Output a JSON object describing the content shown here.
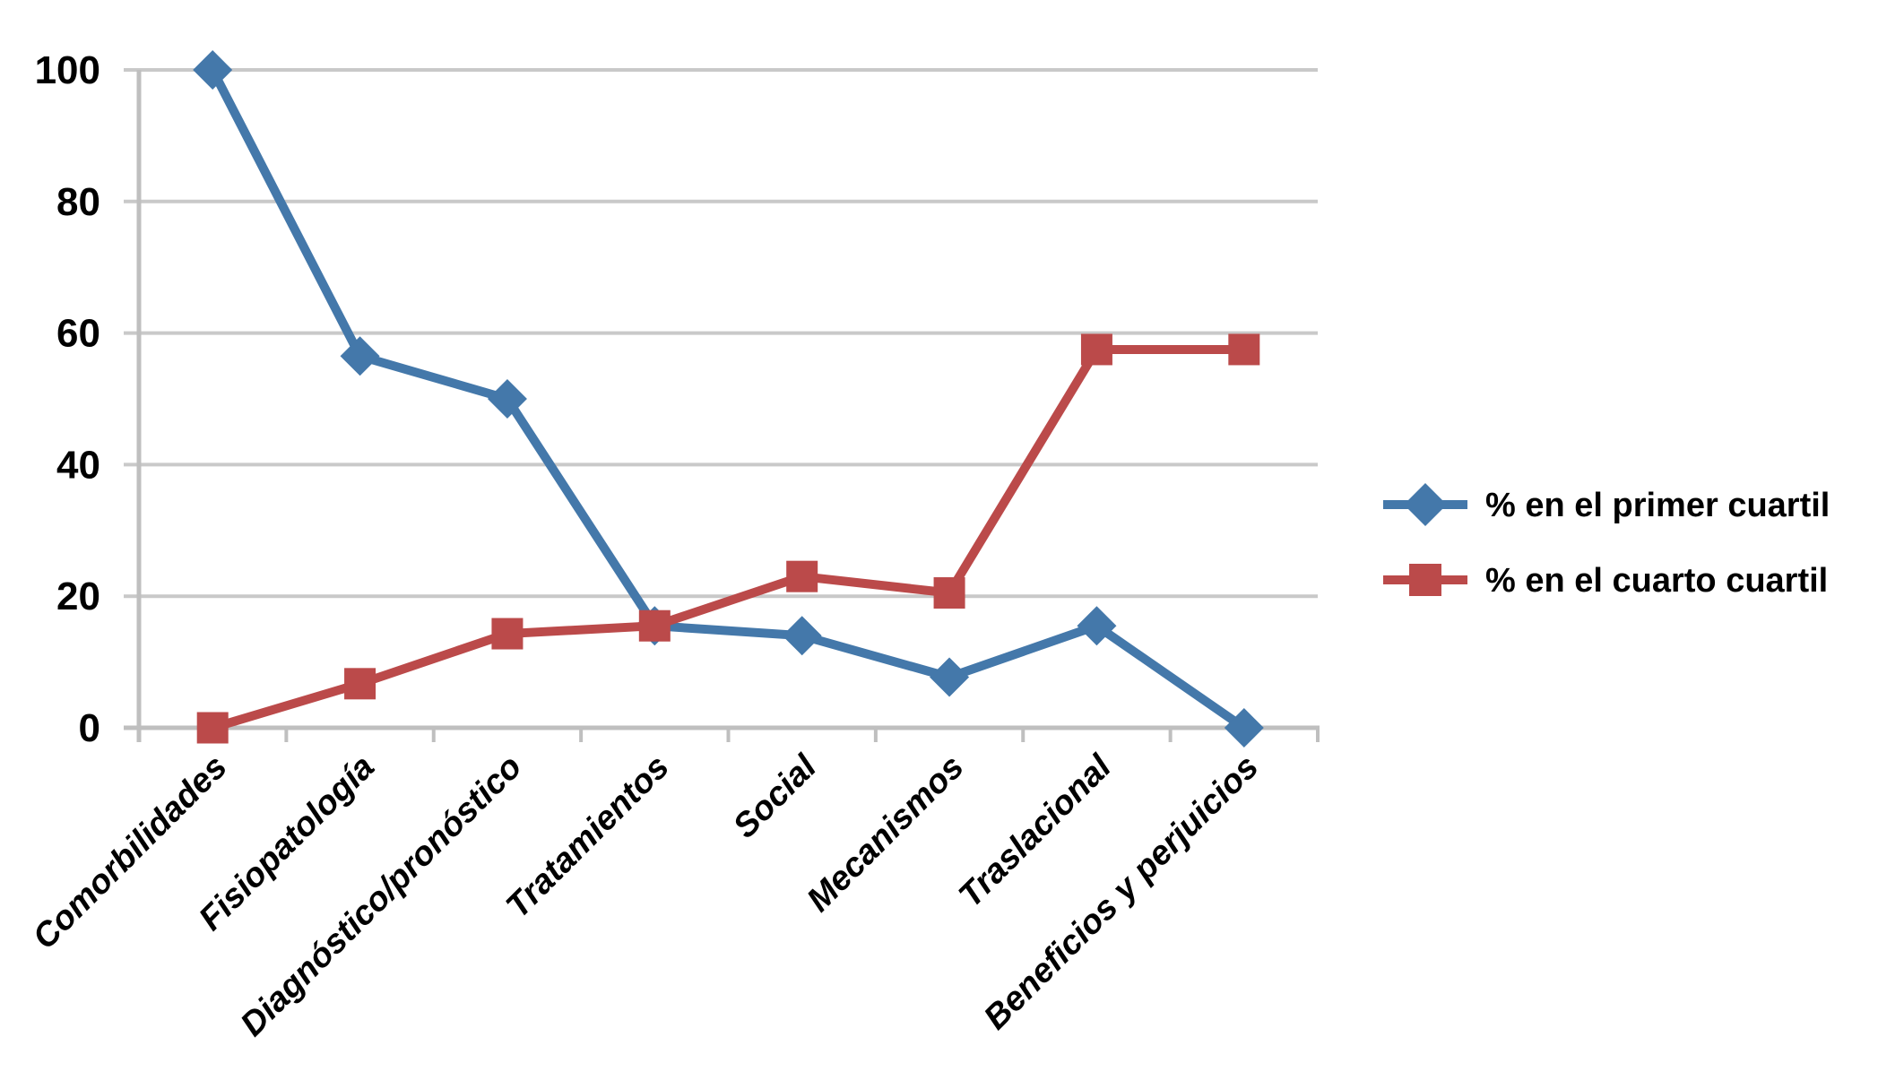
{
  "chart_data": {
    "type": "line",
    "title": "",
    "xlabel": "",
    "ylabel": "",
    "categories": [
      "Comorbilidades",
      "Fisiopatología",
      "Diagnóstico/pronóstico",
      "Tratamientos",
      "Social",
      "Mecanismos",
      "Traslacional",
      "Beneficios y perjuicios"
    ],
    "series": [
      {
        "name": "% en el primer cuartil",
        "marker": "diamond",
        "color": "#4478aa",
        "values": [
          100,
          56.5,
          50,
          15.5,
          14,
          7.7,
          15.5,
          0
        ]
      },
      {
        "name": "% en el cuarto cuartil",
        "marker": "square",
        "color": "#bb4a4a",
        "values": [
          0,
          6.7,
          14.3,
          15.5,
          23,
          20.5,
          57.5,
          57.5
        ]
      }
    ],
    "ylim": [
      0,
      100
    ],
    "yticks": [
      0,
      20,
      40,
      60,
      80,
      100
    ],
    "grid": true,
    "legend_position": "right"
  },
  "colors": {
    "grid": "#c9c9c9",
    "axis": "#bfbfbf",
    "text": "#000000",
    "background": "#ffffff"
  }
}
